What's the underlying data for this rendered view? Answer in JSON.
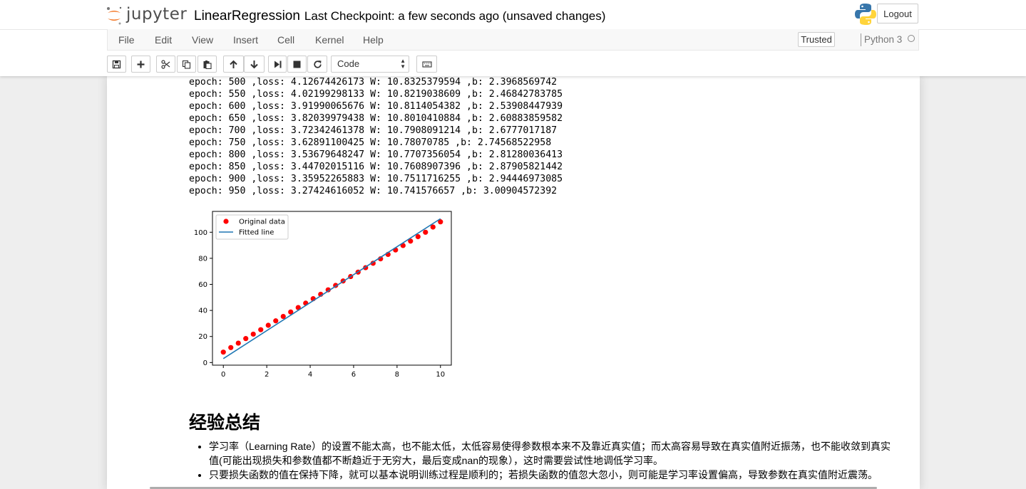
{
  "app": {
    "logo_text": "jupyter",
    "notebook_name": "LinearRegression",
    "checkpoint_status": "Last Checkpoint: a few seconds ago (unsaved changes)",
    "logout_label": "Logout"
  },
  "menu": {
    "items": [
      "File",
      "Edit",
      "View",
      "Insert",
      "Cell",
      "Kernel",
      "Help"
    ],
    "trusted_label": "Trusted",
    "kernel_name": "Python 3"
  },
  "toolbar": {
    "buttons": [
      "save-icon",
      "plus-icon",
      "scissors-icon",
      "copy-icon",
      "paste-icon",
      "arrow-up-icon",
      "arrow-down-icon",
      "step-forward-icon",
      "stop-icon",
      "restart-icon",
      "keyboard-icon"
    ],
    "cell_type": "Code"
  },
  "output": {
    "lines": [
      "epoch: 500 ,loss: 4.12674426173 W: 10.8325379594 ,b: 2.3968569742",
      "epoch: 550 ,loss: 4.02199298133 W: 10.8219038609 ,b: 2.46842783785",
      "epoch: 600 ,loss: 3.91990065676 W: 10.8114054382 ,b: 2.53908447939",
      "epoch: 650 ,loss: 3.82039979438 W: 10.8010410884 ,b: 2.60883859582",
      "epoch: 700 ,loss: 3.72342461378 W: 10.7908091214 ,b: 2.6777017187",
      "epoch: 750 ,loss: 3.62891100425 W: 10.78070785 ,b: 2.74568522958",
      "epoch: 800 ,loss: 3.53679648247 W: 10.7707356054 ,b: 2.81280036413",
      "epoch: 850 ,loss: 3.44702015116 W: 10.7608907396 ,b: 2.87905821442",
      "epoch: 900 ,loss: 3.35952265883 W: 10.7511716255 ,b: 2.94446973085",
      "epoch: 950 ,loss: 3.27424616052 W: 10.741576657 ,b: 3.00904572392"
    ]
  },
  "chart_data": {
    "type": "scatter",
    "title": "",
    "xlabel": "",
    "ylabel": "",
    "xlim": [
      -0.5,
      10.5
    ],
    "ylim": [
      -2,
      116
    ],
    "xticks": [
      0,
      2,
      4,
      6,
      8,
      10
    ],
    "yticks": [
      0,
      20,
      40,
      60,
      80,
      100
    ],
    "legend_position": "upper-left",
    "grid": false,
    "series": [
      {
        "name": "Original data",
        "kind": "points",
        "color": "#ff0000",
        "x": [
          0,
          0.345,
          0.69,
          1.034,
          1.379,
          1.724,
          2.069,
          2.414,
          2.759,
          3.103,
          3.448,
          3.793,
          4.138,
          4.483,
          4.828,
          5.172,
          5.517,
          5.862,
          6.207,
          6.552,
          6.897,
          7.241,
          7.586,
          7.931,
          8.276,
          8.621,
          8.966,
          9.31,
          9.655,
          10
        ],
        "y": [
          8,
          11.5,
          14.9,
          18.4,
          21.8,
          25.2,
          28.6,
          32,
          35.4,
          38.8,
          42.2,
          45.6,
          49,
          52.4,
          55.8,
          59.2,
          62.6,
          66,
          69.4,
          72.8,
          76.2,
          79.6,
          83,
          86.4,
          89.8,
          93.2,
          96.6,
          100,
          104,
          108
        ]
      },
      {
        "name": "Fitted line",
        "kind": "line",
        "color": "#1f77b4",
        "x": [
          0,
          10
        ],
        "y": [
          3.0,
          110.4
        ]
      }
    ]
  },
  "summary": {
    "title": "经验总结",
    "items": [
      "学习率（Learning Rate）的设置不能太高，也不能太低，太低容易使得参数根本来不及靠近真实值；而太高容易导致在真实值附近振荡，也不能收敛到真实值(可能出现损失和参数值都不断趋近于无穷大，最后变成nan的现象），这时需要尝试性地调低学习率。",
      "只要损失函数的值在保持下降，就可以基本说明训练过程是顺利的；若损失函数的值忽大忽小，则可能是学习率设置偏高，导致参数在真实值附近震荡。"
    ]
  }
}
